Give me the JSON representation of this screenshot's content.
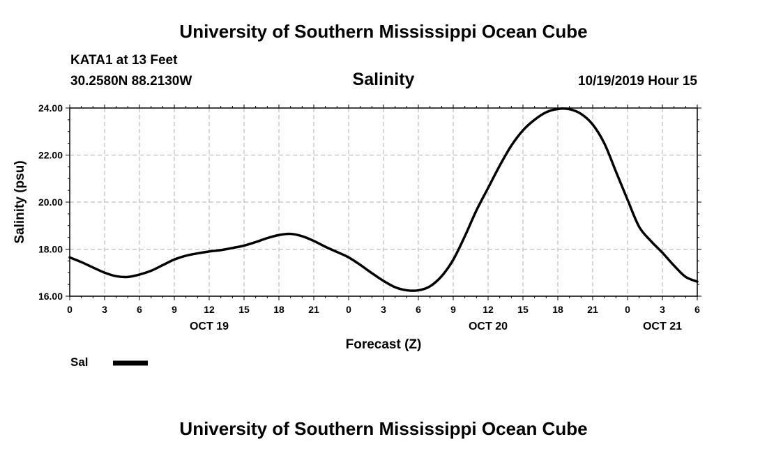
{
  "header": {
    "top_title": "University of Southern Mississippi Ocean Cube",
    "bottom_title": "University of Southern Mississippi Ocean Cube",
    "station": "KATA1 at 13 Feet",
    "location": "30.2580N 88.2130W",
    "variable": "Salinity",
    "datetime": "10/19/2019 Hour 15"
  },
  "legend": {
    "label": "Sal"
  },
  "colors": {
    "line": "#000000",
    "grid": "#b0b0b0",
    "background": "#ffffff"
  },
  "chart_data": {
    "type": "line",
    "title": "Salinity",
    "xlabel": "Forecast (Z)",
    "ylabel": "Salinity (psu)",
    "xlim": [
      0,
      54
    ],
    "ylim": [
      16,
      24
    ],
    "x_ticks": [
      0,
      3,
      6,
      9,
      12,
      15,
      18,
      21,
      24,
      27,
      30,
      33,
      36,
      39,
      42,
      45,
      48,
      51,
      54
    ],
    "x_tick_labels": [
      "0",
      "3",
      "6",
      "9",
      "12",
      "15",
      "18",
      "21",
      "0",
      "3",
      "6",
      "9",
      "12",
      "15",
      "18",
      "21",
      "0",
      "3",
      "6"
    ],
    "y_ticks": [
      16,
      18,
      20,
      22,
      24
    ],
    "y_tick_labels": [
      "16.00",
      "18.00",
      "20.00",
      "22.00",
      "24.00"
    ],
    "date_labels": [
      {
        "x": 12,
        "label": "OCT 19"
      },
      {
        "x": 36,
        "label": "OCT 20"
      },
      {
        "x": 51,
        "label": "OCT 21"
      }
    ],
    "grid": true,
    "series": [
      {
        "name": "Sal",
        "x": [
          0,
          1,
          2,
          3,
          4,
          5,
          6,
          7,
          8,
          9,
          10,
          11,
          12,
          13,
          14,
          15,
          16,
          17,
          18,
          19,
          20,
          21,
          22,
          23,
          24,
          25,
          26,
          27,
          28,
          29,
          30,
          31,
          32,
          33,
          34,
          35,
          36,
          37,
          38,
          39,
          40,
          41,
          42,
          43,
          44,
          45,
          46,
          47,
          48,
          49,
          50,
          51,
          52,
          53,
          54
        ],
        "values": [
          17.65,
          17.45,
          17.22,
          17.0,
          16.85,
          16.82,
          16.92,
          17.08,
          17.32,
          17.56,
          17.72,
          17.82,
          17.9,
          17.96,
          18.05,
          18.15,
          18.3,
          18.47,
          18.6,
          18.65,
          18.55,
          18.35,
          18.1,
          17.88,
          17.65,
          17.33,
          16.98,
          16.65,
          16.38,
          16.25,
          16.25,
          16.42,
          16.85,
          17.55,
          18.55,
          19.65,
          20.6,
          21.55,
          22.4,
          23.05,
          23.5,
          23.82,
          23.96,
          23.95,
          23.75,
          23.3,
          22.5,
          21.3,
          20.1,
          18.95,
          18.35,
          17.85,
          17.3,
          16.82,
          16.62
        ]
      }
    ]
  }
}
